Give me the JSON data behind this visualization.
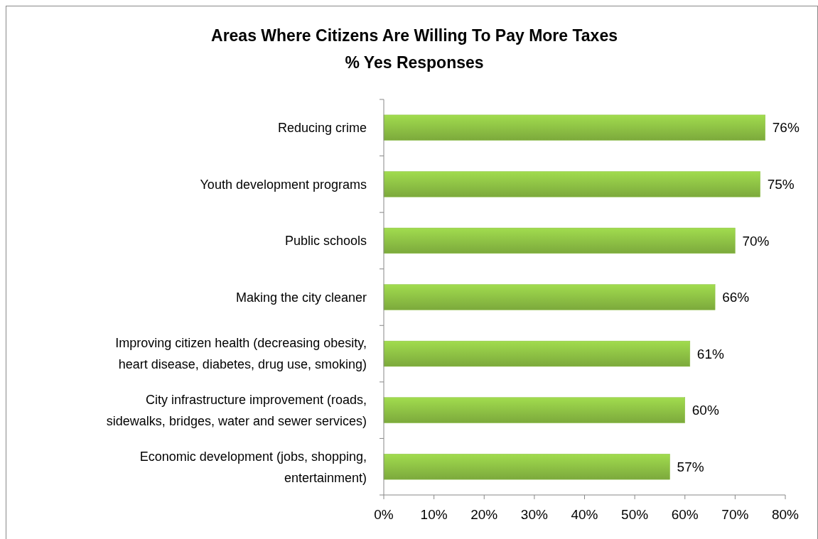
{
  "chart_data": {
    "type": "bar",
    "orientation": "horizontal",
    "title": "Areas Where Citizens Are Willing To Pay More Taxes",
    "subtitle": "% Yes Responses",
    "categories": [
      "Reducing crime",
      "Youth development programs",
      "Public schools",
      "Making the city cleaner",
      "Improving citizen health (decreasing obesity, heart disease, diabetes, drug use, smoking)",
      "City infrastructure improvement (roads, sidewalks, bridges, water and sewer services)",
      "Economic development (jobs, shopping, entertainment)"
    ],
    "values": [
      76,
      75,
      70,
      66,
      61,
      60,
      57
    ],
    "value_labels": [
      "76%",
      "75%",
      "70%",
      "66%",
      "61%",
      "60%",
      "57%"
    ],
    "color": "#8cbf44",
    "xlim": [
      0,
      80
    ],
    "xticks": [
      {
        "value": 0,
        "label": "0%"
      },
      {
        "value": 10,
        "label": "10%"
      },
      {
        "value": 20,
        "label": "20%"
      },
      {
        "value": 30,
        "label": "30%"
      },
      {
        "value": 40,
        "label": "40%"
      },
      {
        "value": 50,
        "label": "50%"
      },
      {
        "value": 60,
        "label": "60%"
      },
      {
        "value": 70,
        "label": "70%"
      },
      {
        "value": 80,
        "label": "80%"
      }
    ]
  }
}
